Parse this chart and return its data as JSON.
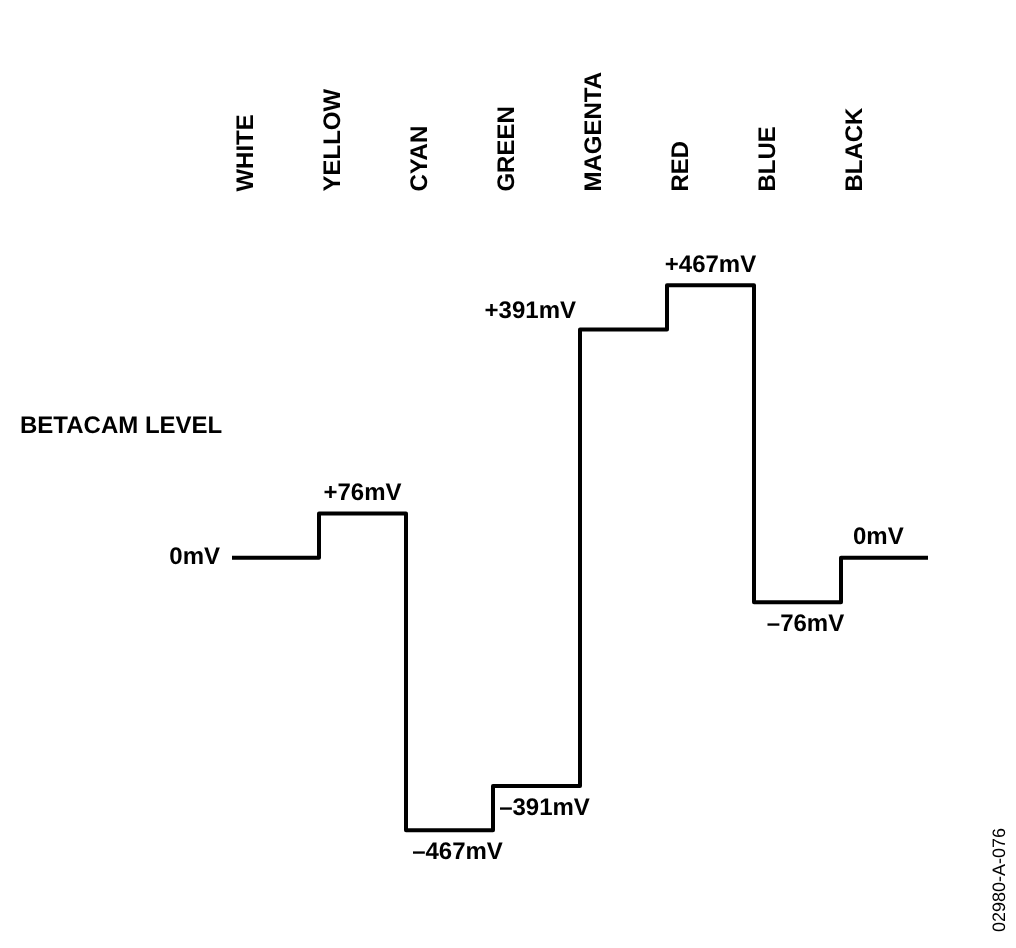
{
  "chart_data": {
    "type": "step",
    "title": "BETACAM LEVEL",
    "categories": [
      "WHITE",
      "YELLOW",
      "CYAN",
      "GREEN",
      "MAGENTA",
      "RED",
      "BLUE",
      "BLACK"
    ],
    "series": [
      {
        "color": "#000000",
        "values": [
          0,
          76,
          -467,
          -391,
          391,
          467,
          -76,
          0
        ],
        "value_labels": [
          "0mV",
          "+76mV",
          "–467mV",
          "–391mV",
          "+391mV",
          "+467mV",
          "–76mV",
          "0mV"
        ]
      }
    ],
    "legend": false,
    "marker": "none",
    "line_style": "solid",
    "annotations": [
      "02980-A-076"
    ]
  }
}
